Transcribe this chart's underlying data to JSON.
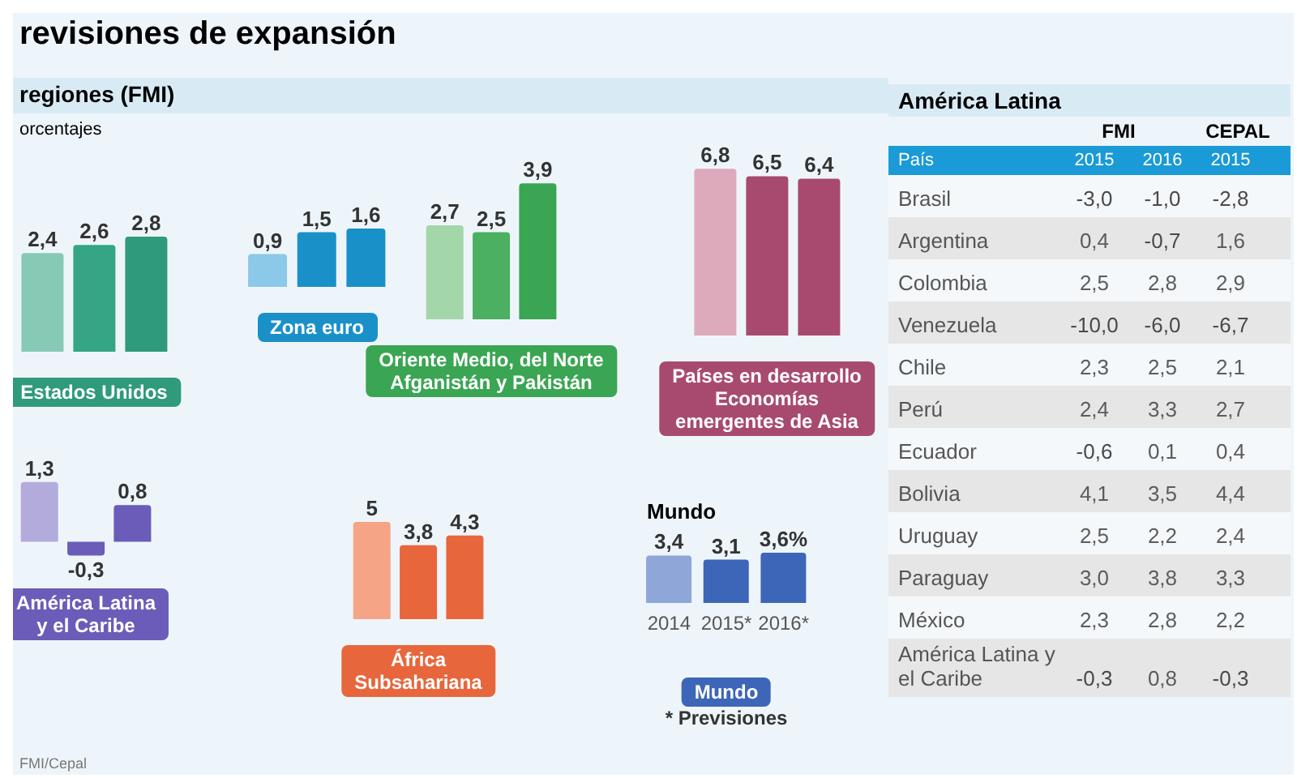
{
  "chart_data": [
    {
      "type": "other",
      "title": "revisiones de expansión",
      "subtitle": "regiones (FMI)",
      "annotations": [
        "orcentajes",
        "FMI/Cepal"
      ]
    },
    {
      "type": "bar",
      "categories": [
        null,
        null,
        null
      ],
      "values": [
        2.4,
        2.6,
        2.8
      ],
      "value_labels": [
        "2,4",
        "2,6",
        "2,8"
      ],
      "colors": [
        "#86c9b4",
        "#35a586",
        "#2f9a7c"
      ],
      "xlabel": "Estados Unidos"
    },
    {
      "type": "bar",
      "categories": [
        null,
        null,
        null
      ],
      "values": [
        0.9,
        1.5,
        1.6
      ],
      "value_labels": [
        "0,9",
        "1,5",
        "1,6"
      ],
      "colors": [
        "#8cc8e8",
        "#1a90c8",
        "#1a90c8"
      ],
      "xlabel": "Zona euro"
    },
    {
      "type": "bar",
      "categories": [
        null,
        null,
        null
      ],
      "values": [
        2.7,
        2.5,
        3.9
      ],
      "value_labels": [
        "2,7",
        "2,5",
        "3,9"
      ],
      "colors": [
        "#a3d6a9",
        "#4bb060",
        "#3aa552"
      ],
      "xlabel": "Oriente Medio, del Norte\nAfganistán y Pakistán"
    },
    {
      "type": "bar",
      "categories": [
        null,
        null,
        null
      ],
      "values": [
        6.8,
        6.5,
        6.4
      ],
      "value_labels": [
        "6,8",
        "6,5",
        "6,4"
      ],
      "colors": [
        "#ddaabb",
        "#a84a70",
        "#a84a70"
      ],
      "xlabel": "Países en desarrollo\nEconomías\nemergentes de Asia"
    },
    {
      "type": "bar",
      "categories": [
        null,
        null,
        null
      ],
      "values": [
        1.3,
        -0.3,
        0.8
      ],
      "value_labels": [
        "1,3",
        "-0,3",
        "0,8"
      ],
      "colors": [
        "#b3abdb",
        "#6a5cb8",
        "#6a5cb8"
      ],
      "xlabel": "América Latina\ny el Caribe"
    },
    {
      "type": "bar",
      "categories": [
        null,
        null,
        null
      ],
      "values": [
        5,
        3.8,
        4.3
      ],
      "value_labels": [
        "5",
        "3,8",
        "4,3"
      ],
      "colors": [
        "#f5a585",
        "#e8663c",
        "#e8663c"
      ],
      "xlabel": "África\nSubsahariana"
    },
    {
      "type": "bar",
      "title": "Mundo",
      "categories": [
        "2014",
        "2015*",
        "2016*"
      ],
      "values": [
        3.4,
        3.1,
        3.6
      ],
      "value_labels": [
        "3,4",
        "3,1",
        "3,6%"
      ],
      "colors": [
        "#8ea6d8",
        "#3d66b8",
        "#3d66b8"
      ],
      "xlabel": "Mundo",
      "annotations": [
        "* Previsiones"
      ]
    },
    {
      "type": "heatmap",
      "title": "América Latina",
      "ylabel": "País",
      "annotations": [
        "FMI",
        "CEPAL"
      ],
      "categories": [
        "2015",
        "2016",
        "2015"
      ],
      "y_categories": [
        "Brasil",
        "Argentina",
        "Colombia",
        "Venezuela",
        "Chile",
        "Perú",
        "Ecuador",
        "Bolivia",
        "Uruguay",
        "Paraguay",
        "México",
        "América Latina y el Caribe"
      ],
      "cells": [
        [
          -3.0,
          -1.0,
          -2.8
        ],
        [
          0.4,
          -0.7,
          1.6
        ],
        [
          2.5,
          2.8,
          2.9
        ],
        [
          -10.0,
          -6.0,
          -6.7
        ],
        [
          2.3,
          2.5,
          2.1
        ],
        [
          2.4,
          3.3,
          2.7
        ],
        [
          -0.6,
          0.1,
          0.4
        ],
        [
          4.1,
          3.5,
          4.4
        ],
        [
          2.5,
          2.2,
          2.4
        ],
        [
          3.0,
          3.8,
          3.3
        ],
        [
          2.3,
          2.8,
          2.2
        ],
        [
          -0.3,
          0.8,
          -0.3
        ]
      ],
      "cell_labels": [
        [
          "-3,0",
          "-1,0",
          "-2,8"
        ],
        [
          "0,4",
          "-0,7",
          "1,6"
        ],
        [
          "2,5",
          "2,8",
          "2,9"
        ],
        [
          "-10,0",
          "-6,0",
          "-6,7"
        ],
        [
          "2,3",
          "2,5",
          "2,1"
        ],
        [
          "2,4",
          "3,3",
          "2,7"
        ],
        [
          "-0,6",
          "0,1",
          "0,4"
        ],
        [
          "4,1",
          "3,5",
          "4,4"
        ],
        [
          "2,5",
          "2,2",
          "2,4"
        ],
        [
          "3,0",
          "3,8",
          "3,3"
        ],
        [
          "2,3",
          "2,8",
          "2,2"
        ],
        [
          "-0,3",
          "0,8",
          "-0,3"
        ]
      ]
    }
  ]
}
